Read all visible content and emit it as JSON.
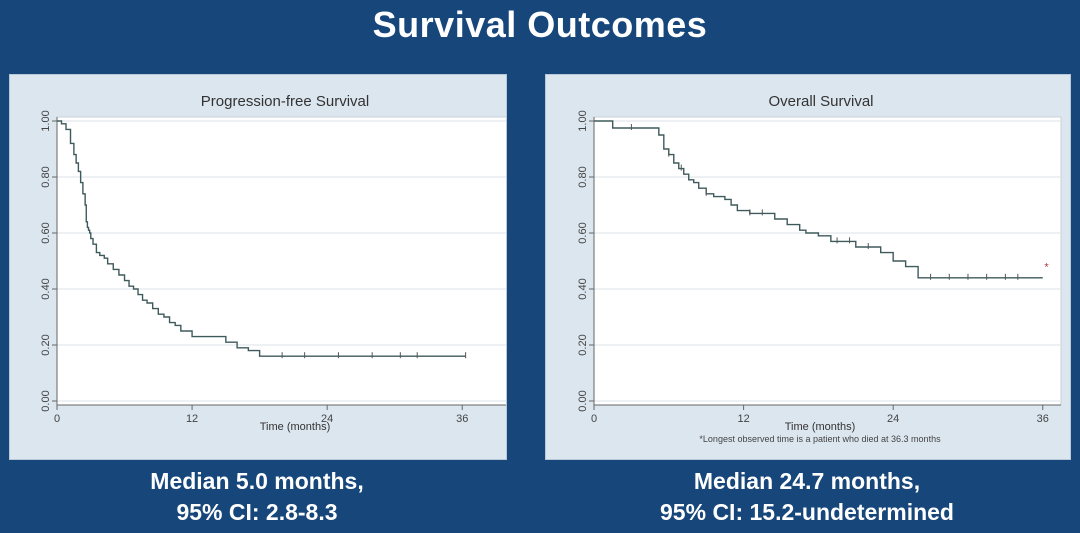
{
  "slide": {
    "title": "Survival Outcomes"
  },
  "captions": {
    "pfs": {
      "line1": "Median 5.0 months,",
      "line2": "95% CI: 2.8-8.3"
    },
    "os": {
      "line1": "Median 24.7 months,",
      "line2": "95% CI: 15.2-undetermined"
    }
  },
  "colors": {
    "background": "#16467a",
    "panel": "#dce6ef",
    "plot_area": "#ffffff",
    "curve": "#3f5a5c",
    "grid": "#dde3e8"
  },
  "chart_data": [
    {
      "type": "line",
      "step": true,
      "title": "Progression-free Survival",
      "xlabel": "Time (months)",
      "ylabel": "",
      "xlim": [
        0,
        39
      ],
      "ylim": [
        0,
        1
      ],
      "xticks": [
        0,
        12,
        24,
        36
      ],
      "xtick_labels": [
        "0",
        "12",
        "24",
        "36"
      ],
      "yticks": [
        0,
        0.2,
        0.4,
        0.6,
        0.8,
        1.0
      ],
      "ytick_labels": [
        "0.00",
        "0.20",
        "0.40",
        "0.60",
        "0.80",
        "1.00"
      ],
      "grid": "horizontal",
      "series": [
        {
          "name": "Progression-free Survival",
          "x": [
            0,
            0.4,
            0.8,
            1.2,
            1.5,
            1.7,
            1.9,
            2.1,
            2.3,
            2.5,
            2.6,
            2.7,
            2.8,
            2.9,
            3.0,
            3.2,
            3.5,
            3.8,
            4.2,
            4.5,
            5.0,
            5.5,
            6.0,
            6.4,
            6.8,
            7.2,
            7.6,
            8.0,
            8.5,
            9.0,
            9.5,
            10.0,
            10.5,
            11.0,
            12.0,
            13.0,
            14.0,
            15.0,
            16.0,
            17.0,
            18.0,
            20.0,
            22.0,
            24.0,
            26.0,
            28.0,
            30.0,
            32.0,
            34.0,
            36.3
          ],
          "y": [
            1.0,
            0.99,
            0.97,
            0.92,
            0.88,
            0.85,
            0.82,
            0.78,
            0.74,
            0.7,
            0.64,
            0.62,
            0.61,
            0.6,
            0.58,
            0.56,
            0.53,
            0.52,
            0.51,
            0.49,
            0.47,
            0.45,
            0.43,
            0.41,
            0.4,
            0.38,
            0.36,
            0.35,
            0.33,
            0.31,
            0.3,
            0.28,
            0.27,
            0.25,
            0.23,
            0.23,
            0.23,
            0.21,
            0.19,
            0.18,
            0.16,
            0.16,
            0.16,
            0.16,
            0.16,
            0.16,
            0.16,
            0.16,
            0.16,
            0.16
          ]
        }
      ],
      "censored_x": [
        20.0,
        22.0,
        25.0,
        28.0,
        30.5,
        32.0,
        36.3
      ]
    },
    {
      "type": "line",
      "step": true,
      "title": "Overall Survival",
      "xlabel": "Time (months)",
      "ylabel": "",
      "footnote": "*Longest observed time is a patient who died at 36.3 months",
      "xlim": [
        0,
        36.5
      ],
      "ylim": [
        0,
        1
      ],
      "xticks": [
        0,
        12,
        24,
        36
      ],
      "xtick_labels": [
        "0",
        "12",
        "24",
        "36"
      ],
      "yticks": [
        0,
        0.2,
        0.4,
        0.6,
        0.8,
        1.0
      ],
      "ytick_labels": [
        "0.00",
        "0.20",
        "0.40",
        "0.60",
        "0.80",
        "1.00"
      ],
      "grid": "horizontal",
      "series": [
        {
          "name": "Overall Survival",
          "x": [
            0,
            1.5,
            3.0,
            5.2,
            5.6,
            6.0,
            6.4,
            6.8,
            7.2,
            7.6,
            8.0,
            8.4,
            9.0,
            9.6,
            10.5,
            11.0,
            11.5,
            12.5,
            13.5,
            14.5,
            15.5,
            16.5,
            17.0,
            18.0,
            19.0,
            20.5,
            21.0,
            23.0,
            24.0,
            25.0,
            26.0,
            36.0
          ],
          "y": [
            1.0,
            0.975,
            0.975,
            0.95,
            0.9,
            0.88,
            0.85,
            0.83,
            0.81,
            0.79,
            0.78,
            0.76,
            0.74,
            0.73,
            0.72,
            0.7,
            0.68,
            0.67,
            0.67,
            0.65,
            0.63,
            0.61,
            0.6,
            0.59,
            0.57,
            0.57,
            0.55,
            0.53,
            0.5,
            0.48,
            0.44,
            0.44
          ]
        }
      ],
      "censored_x": [
        3.0,
        6.0,
        7.0,
        9.0,
        12.5,
        13.5,
        19.5,
        20.5,
        22.0,
        27.0,
        28.5,
        30.0,
        31.5,
        33.0,
        34.0
      ],
      "event_marker": {
        "x": 36.3,
        "y": 0.48,
        "label": "*"
      }
    }
  ]
}
